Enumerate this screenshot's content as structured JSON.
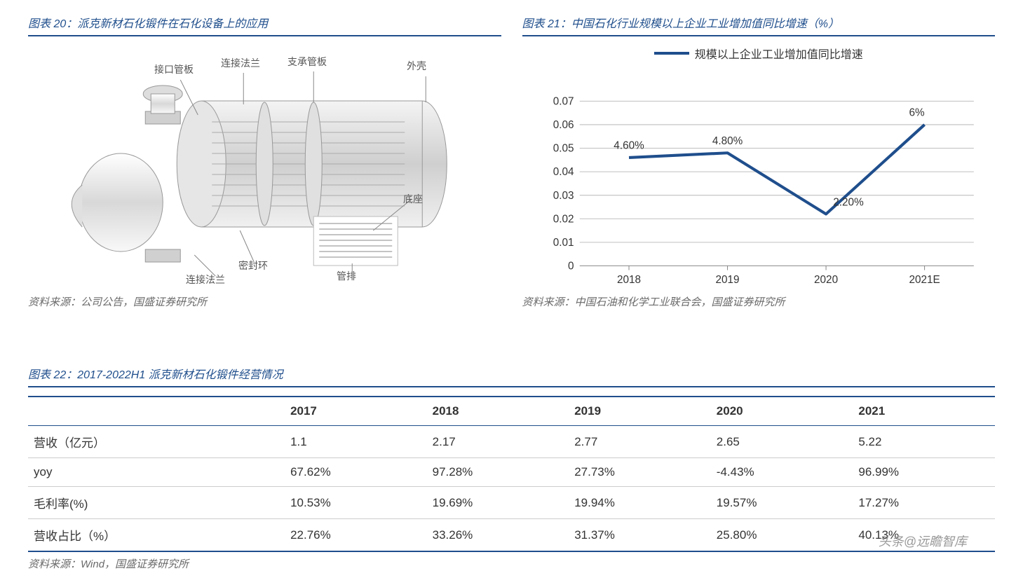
{
  "panel_left": {
    "title": "图表 20：派克新材石化锻件在石化设备上的应用",
    "source": "资料来源：公司公告，国盛证券研究所",
    "labels": {
      "l1": "接口管板",
      "l2": "连接法兰",
      "l3": "支承管板",
      "l4": "外壳",
      "l5": "底座",
      "l6": "管排",
      "l7": "密封环",
      "l8": "连接法兰"
    }
  },
  "panel_right": {
    "title": "图表 21：中国石化行业规模以上企业工业增加值同比增速（%）",
    "source": "资料来源：中国石油和化学工业联合会，国盛证券研究所",
    "legend": "规模以上企业工业增加值同比增速",
    "chart": {
      "type": "line",
      "line_color": "#1f4e8c",
      "line_width": 4,
      "background_color": "#ffffff",
      "grid_color": "#bfbfbf",
      "categories": [
        "2018",
        "2019",
        "2020",
        "2021E"
      ],
      "values": [
        0.046,
        0.048,
        0.022,
        0.06
      ],
      "data_labels": [
        "4.60%",
        "4.80%",
        "2.20%",
        "6%"
      ],
      "ylim": [
        0,
        0.07
      ],
      "ytick_step": 0.01,
      "yticks": [
        "0",
        "0.01",
        "0.02",
        "0.03",
        "0.04",
        "0.05",
        "0.06",
        "0.07"
      ],
      "label_fontsize": 15
    }
  },
  "panel_table": {
    "title": "图表 22：2017-2022H1 派克新材石化锻件经营情况",
    "source": "资料来源：Wind，国盛证券研究所",
    "columns": [
      "",
      "2017",
      "2018",
      "2019",
      "2020",
      "2021"
    ],
    "rows": [
      [
        "营收（亿元）",
        "1.1",
        "2.17",
        "2.77",
        "2.65",
        "5.22"
      ],
      [
        "yoy",
        "67.62%",
        "97.28%",
        "27.73%",
        "-4.43%",
        "96.99%"
      ],
      [
        "毛利率(%)",
        "10.53%",
        "19.69%",
        "19.94%",
        "19.57%",
        "17.27%"
      ],
      [
        "营收占比（%）",
        "22.76%",
        "33.26%",
        "31.37%",
        "25.80%",
        "40.13%"
      ]
    ]
  },
  "watermark": "头条@远瞻智库"
}
